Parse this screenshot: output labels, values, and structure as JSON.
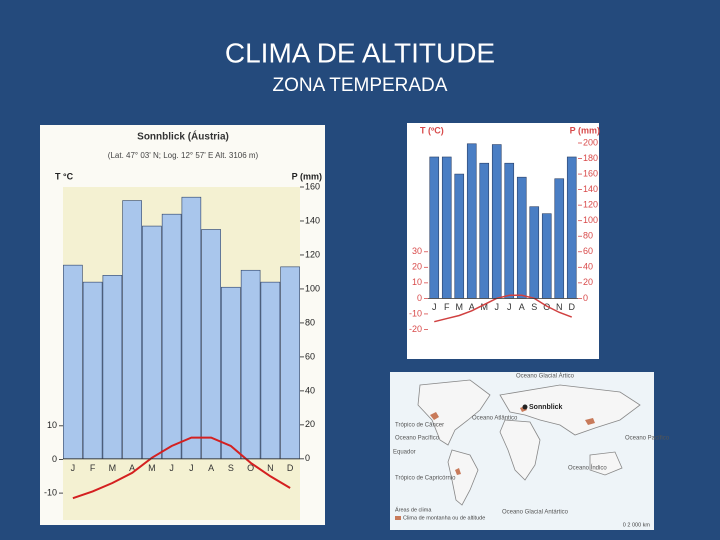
{
  "slide": {
    "title": "CLIMA DE ALTITUDE",
    "subtitle": "ZONA TEMPERADA"
  },
  "chart_data": [
    {
      "type": "combo",
      "title": "Sonnblick (Áustria)",
      "subtitle": "(Lat. 47° 03' N; Log. 12° 57' E Alt. 3106 m)",
      "ylabel": "T °C",
      "y2label": "P (mm)",
      "categories": [
        "J",
        "F",
        "M",
        "A",
        "M",
        "J",
        "J",
        "A",
        "S",
        "O",
        "N",
        "D"
      ],
      "series": [
        {
          "kind": "bar",
          "axis": "y2",
          "color": "#a9c6ec",
          "values": [
            114,
            104,
            108,
            152,
            137,
            144,
            154,
            135,
            101,
            111,
            104,
            113
          ]
        },
        {
          "kind": "line",
          "axis": "y",
          "color": "#d42020",
          "values": [
            -11.5,
            -9.5,
            -7,
            -4,
            0.5,
            4,
            6.5,
            6.5,
            4,
            -1,
            -5,
            -8.5
          ]
        }
      ],
      "ylim": [
        -18,
        81
      ],
      "yticks": [
        -10,
        0,
        10
      ],
      "y2lim": [
        -36,
        160
      ],
      "y2ticks": [
        0,
        20,
        40,
        60,
        80,
        100,
        120,
        140,
        160
      ],
      "plot_color": "#f4f1d2",
      "tick_color": "#222222"
    },
    {
      "type": "combo",
      "ylabel": "T (ºC)",
      "y2label": "P (mm)",
      "categories": [
        "J",
        "F",
        "M",
        "A",
        "M",
        "J",
        "J",
        "A",
        "S",
        "O",
        "N",
        "D"
      ],
      "series": [
        {
          "kind": "bar",
          "axis": "y2",
          "color": "#4a7ec4",
          "values": [
            182,
            182,
            160,
            199,
            174,
            198,
            174,
            156,
            118,
            109,
            154,
            182
          ]
        },
        {
          "kind": "line",
          "axis": "y",
          "color": "#d04040",
          "values": [
            -15,
            -13,
            -11,
            -8,
            -4,
            0,
            2,
            2,
            0,
            -5,
            -9,
            -12
          ]
        }
      ],
      "ylim": [
        -30,
        100
      ],
      "yticks": [
        -20,
        -10,
        0,
        10,
        20,
        30
      ],
      "y2lim": [
        -60,
        200
      ],
      "y2ticks": [
        0,
        20,
        40,
        60,
        80,
        100,
        120,
        140,
        160,
        180,
        200
      ],
      "plot_color": "#ffffff",
      "tick_color": "#d84a4a"
    }
  ],
  "map": {
    "labels": [
      "Oceano Glacial Ártico",
      "Sonnblick",
      "Oceano Atlântico",
      "Oceano Pacífico",
      "Oceano Pacífico",
      "Equador",
      "Trópico de Câncer",
      "Trópico de Capricórnio",
      "Oceano Índico",
      "Oceano Glacial Antártico",
      "Áreas de clima",
      "Clima de montanha ou de altitude",
      "0 2 000 km"
    ]
  }
}
